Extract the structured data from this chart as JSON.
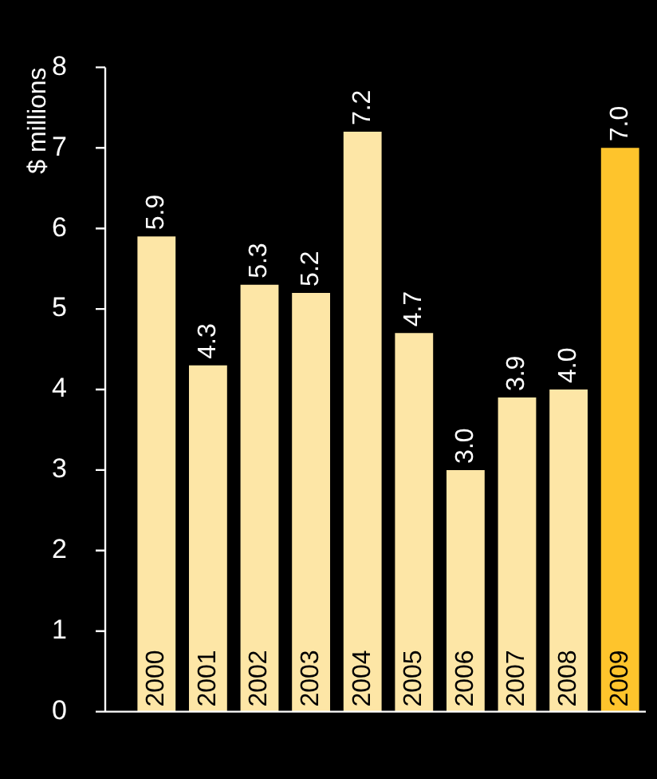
{
  "chart_data": {
    "type": "bar",
    "ylabel": "$ millions",
    "categories": [
      "2000",
      "2001",
      "2002",
      "2003",
      "2004",
      "2005",
      "2006",
      "2007",
      "2008",
      "2009"
    ],
    "values": [
      5.9,
      4.3,
      5.3,
      5.2,
      7.2,
      4.7,
      3.0,
      3.9,
      4.0,
      7.0
    ],
    "colors": [
      "#fde6a6",
      "#fde6a6",
      "#fde6a6",
      "#fde6a6",
      "#fde6a6",
      "#fde6a6",
      "#fde6a6",
      "#fde6a6",
      "#fde6a6",
      "#fec42c"
    ],
    "value_labels": [
      "5.9",
      "4.3",
      "5.3",
      "5.2",
      "7.2",
      "4.7",
      "3.0",
      "3.9",
      "4.0",
      "7.0"
    ],
    "ylim": [
      0,
      8
    ],
    "yticks": [
      0,
      1,
      2,
      3,
      4,
      5,
      6,
      7,
      8
    ],
    "grid": false,
    "legend": false
  }
}
